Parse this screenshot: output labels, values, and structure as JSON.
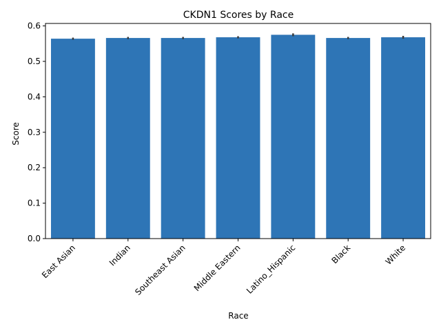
{
  "chart_data": {
    "type": "bar",
    "title": "CKDN1 Scores by Race",
    "xlabel": "Race",
    "ylabel": "Score",
    "categories": [
      "East Asian",
      "Indian",
      "Southeast Asian",
      "Middle Eastern",
      "Latino_Hispanic",
      "Black",
      "White"
    ],
    "values": [
      0.564,
      0.566,
      0.566,
      0.568,
      0.575,
      0.566,
      0.568
    ],
    "error_low": [
      0.561,
      0.563,
      0.563,
      0.565,
      0.571,
      0.563,
      0.564
    ],
    "error_high": [
      0.567,
      0.569,
      0.569,
      0.571,
      0.579,
      0.569,
      0.572
    ],
    "ylim": [
      0,
      0.607
    ],
    "yticks": [
      0.0,
      0.1,
      0.2,
      0.3,
      0.4,
      0.5,
      0.6
    ],
    "ytick_labels": [
      "0.0",
      "0.1",
      "0.2",
      "0.3",
      "0.4",
      "0.5",
      "0.6"
    ],
    "grid": false,
    "bar_color": "#2e75b6",
    "error_color": "#3a3a3a"
  }
}
